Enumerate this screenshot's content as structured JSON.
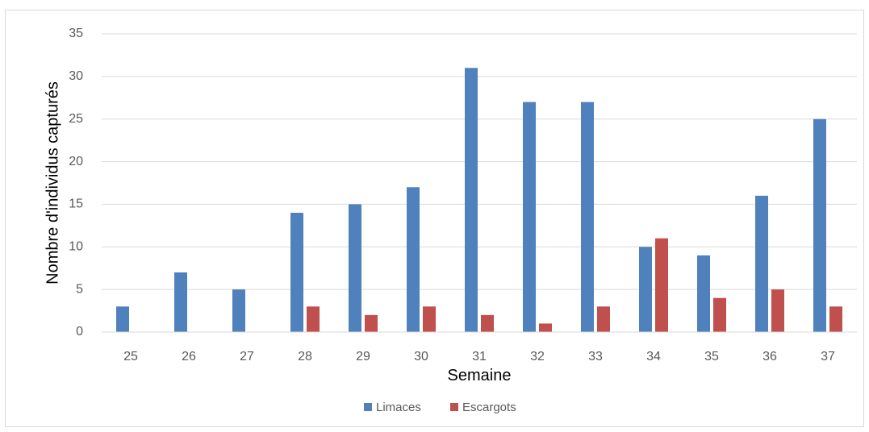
{
  "chart_data": {
    "type": "bar",
    "title": "",
    "xlabel": "Semaine",
    "ylabel": "Nombre d'individus capturés",
    "categories": [
      "25",
      "26",
      "27",
      "28",
      "29",
      "30",
      "31",
      "32",
      "33",
      "34",
      "35",
      "36",
      "37"
    ],
    "series": [
      {
        "name": "Limaces",
        "color": "#4f81bd",
        "values": [
          3,
          7,
          5,
          14,
          15,
          17,
          31,
          27,
          27,
          10,
          9,
          16,
          25
        ]
      },
      {
        "name": "Escargots",
        "color": "#c0504d",
        "values": [
          0,
          0,
          0,
          3,
          2,
          3,
          2,
          1,
          3,
          11,
          4,
          5,
          3
        ]
      }
    ],
    "ylim": [
      0,
      35
    ],
    "yticks": [
      "0",
      "5",
      "10",
      "15",
      "20",
      "25",
      "30",
      "35"
    ],
    "grid": true,
    "legend_position": "bottom"
  }
}
